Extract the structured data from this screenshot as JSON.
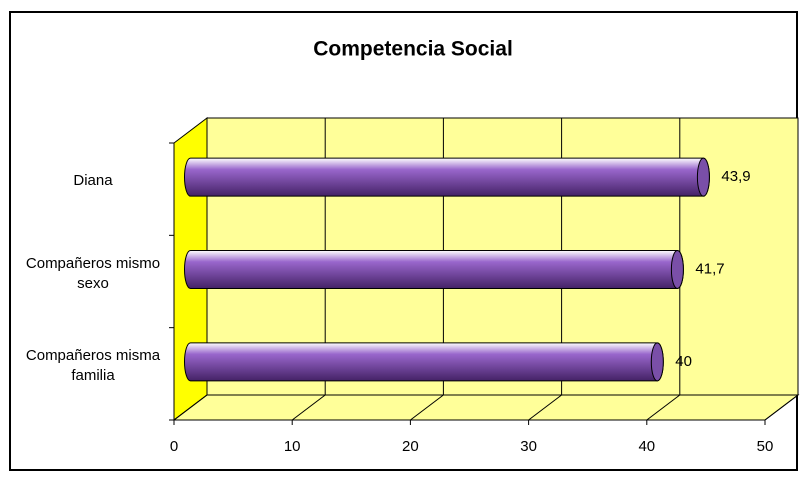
{
  "chart_data": {
    "type": "bar3d",
    "orientation": "horizontal",
    "title": "Competencia Social",
    "categories": [
      "Diana",
      "Compañeros mismo sexo",
      "Compañeros misma familia"
    ],
    "values": [
      43.9,
      41.7,
      40
    ],
    "value_labels": [
      "43,9",
      "41,7",
      "40"
    ],
    "color": "#9966cc",
    "xlim": [
      0,
      50
    ],
    "xticks": [
      0,
      10,
      20,
      30,
      40,
      50
    ],
    "grid": true
  }
}
